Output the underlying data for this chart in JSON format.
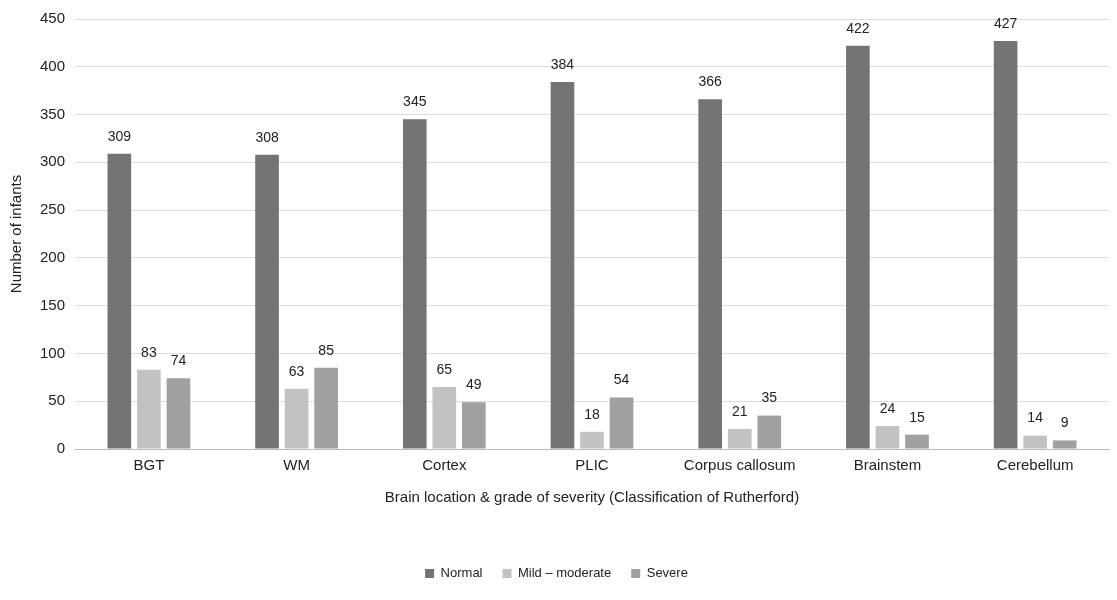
{
  "chart_data": {
    "type": "bar",
    "xlabel": "Brain location & grade of severity (Classification of Rutherford)",
    "ylabel": "Number of infants",
    "categories": [
      "BGT",
      "WM",
      "Cortex",
      "PLIC",
      "Corpus callosum",
      "Brainstem",
      "Cerebellum"
    ],
    "series": [
      {
        "name": "Normal",
        "color": "#747474",
        "values": [
          309,
          308,
          345,
          384,
          366,
          422,
          427
        ]
      },
      {
        "name": "Mild – moderate",
        "color": "#c2c2c2",
        "values": [
          83,
          63,
          65,
          18,
          21,
          24,
          14
        ]
      },
      {
        "name": "Severe",
        "color": "#a0a0a0",
        "values": [
          74,
          85,
          49,
          54,
          35,
          15,
          9
        ]
      }
    ],
    "ylim": [
      0,
      450
    ],
    "yticks": [
      0,
      50,
      100,
      150,
      200,
      250,
      300,
      350,
      400,
      450
    ],
    "grid": "y",
    "legend": "bottom",
    "data_labels": true
  }
}
